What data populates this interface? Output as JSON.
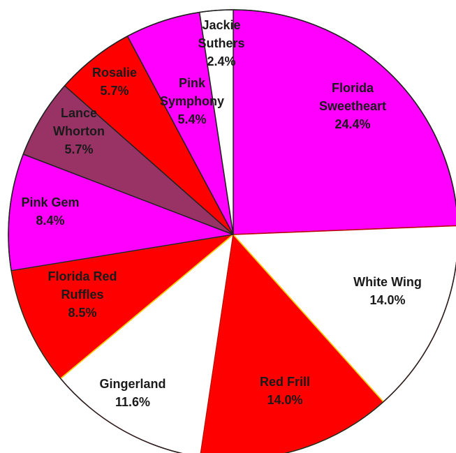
{
  "chart_data": {
    "type": "pie",
    "title": "",
    "start_angle_deg": 0,
    "direction": "clockwise",
    "slices": [
      {
        "name": "Florida Sweetheart",
        "label_lines": [
          "Florida",
          "Sweetheart"
        ],
        "pct_label": "24.4%",
        "value": 24.4,
        "color": "#ff00ff",
        "edge": "#222222"
      },
      {
        "name": "White Wing",
        "label_lines": [
          "White Wing"
        ],
        "pct_label": "14.0%",
        "value": 14.0,
        "color": "#ffffff",
        "edge": "#c00000"
      },
      {
        "name": "Red Frill",
        "label_lines": [
          "Red Frill"
        ],
        "pct_label": "14.0%",
        "value": 14.0,
        "color": "#ff0000",
        "edge": "#ffd700"
      },
      {
        "name": "Gingerland",
        "label_lines": [
          "Gingerland"
        ],
        "pct_label": "11.6%",
        "value": 11.6,
        "color": "#ffffff",
        "edge": "#c00000"
      },
      {
        "name": "Florida Red Ruffles",
        "label_lines": [
          "Florida Red",
          "Ruffles"
        ],
        "pct_label": "8.5%",
        "value": 8.5,
        "color": "#ff0000",
        "edge": "#ffd700"
      },
      {
        "name": "Pink Gem",
        "label_lines": [
          "Pink Gem"
        ],
        "pct_label": "8.4%",
        "value": 8.4,
        "color": "#ff00ff",
        "edge": "#222222"
      },
      {
        "name": "Lance Whorton",
        "label_lines": [
          "Lance",
          "Whorton"
        ],
        "pct_label": "5.7%",
        "value": 5.7,
        "color": "#993366",
        "edge": "#222222"
      },
      {
        "name": "Rosalie",
        "label_lines": [
          "Rosalie"
        ],
        "pct_label": "5.7%",
        "value": 5.7,
        "color": "#ff0000",
        "edge": "#222222"
      },
      {
        "name": "Pink Symphony",
        "label_lines": [
          "Pink",
          "Symphony"
        ],
        "pct_label": "5.4%",
        "value": 5.4,
        "color": "#ff00ff",
        "edge": "#222222"
      },
      {
        "name": "Jackie Suthers",
        "label_lines": [
          "Jackie",
          "Suthers"
        ],
        "pct_label": "2.4%",
        "value": 2.4,
        "color": "#ffffff",
        "edge": "#222222"
      }
    ]
  }
}
